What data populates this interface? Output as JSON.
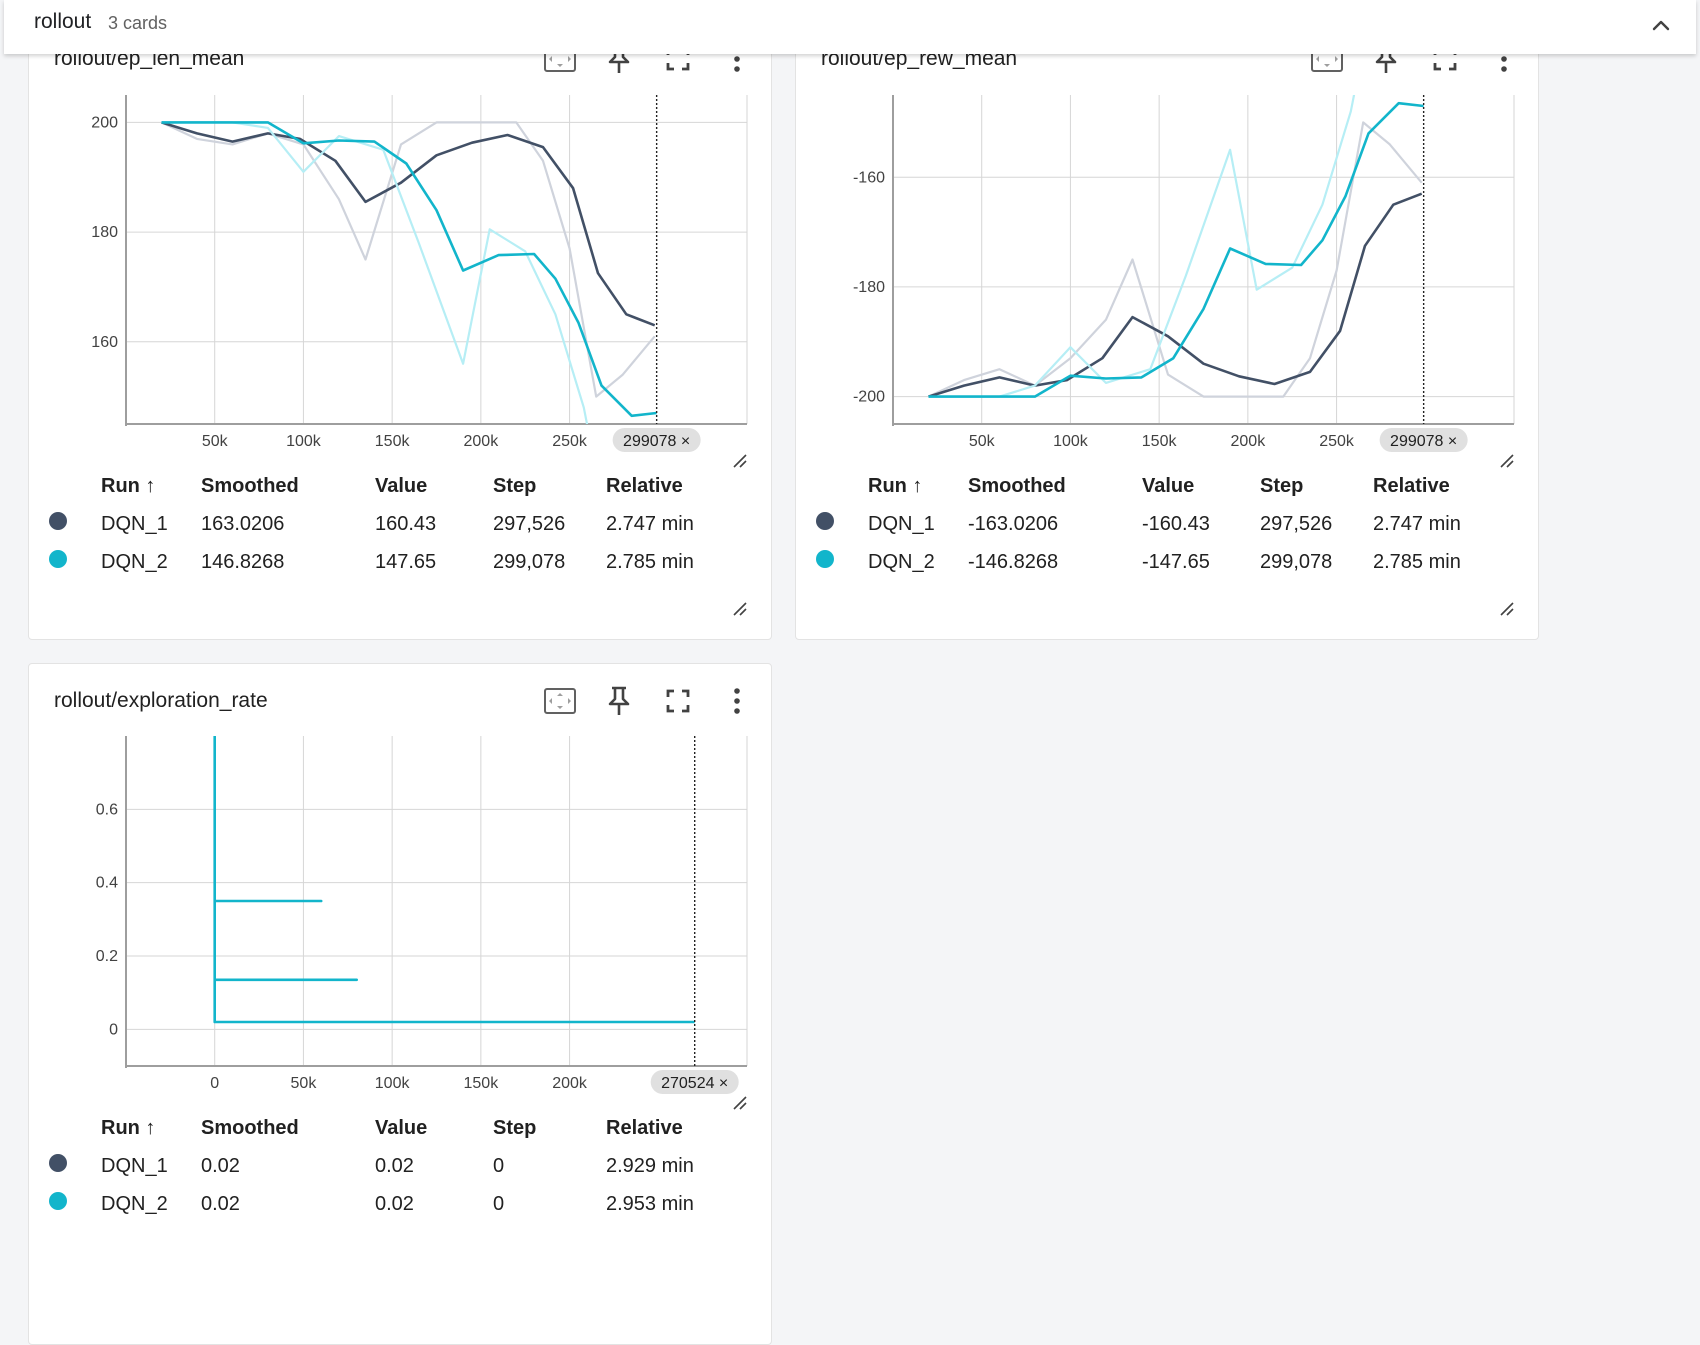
{
  "group": {
    "title": "rollout",
    "count": "3 cards"
  },
  "colors": {
    "dqn1": "#425066",
    "dqn2": "#12b5cb",
    "dqn1_raw": "#cfd3dc",
    "dqn2_raw": "#b6eef5",
    "grid": "#d6d6d6"
  },
  "table_headers": {
    "run": "Run ↑",
    "smoothed": "Smoothed",
    "value": "Value",
    "step": "Step",
    "relative": "Relative"
  },
  "cards": [
    {
      "title": "rollout/ep_len_mean",
      "step_marker": "299078 ×",
      "rows": [
        {
          "run": "DQN_1",
          "smoothed": "163.0206",
          "value": "160.43",
          "step": "297,526",
          "relative": "2.747 min"
        },
        {
          "run": "DQN_2",
          "smoothed": "146.8268",
          "value": "147.65",
          "step": "299,078",
          "relative": "2.785 min"
        }
      ]
    },
    {
      "title": "rollout/ep_rew_mean",
      "step_marker": "299078 ×",
      "rows": [
        {
          "run": "DQN_1",
          "smoothed": "-163.0206",
          "value": "-160.43",
          "step": "297,526",
          "relative": "2.747 min"
        },
        {
          "run": "DQN_2",
          "smoothed": "-146.8268",
          "value": "-147.65",
          "step": "299,078",
          "relative": "2.785 min"
        }
      ]
    },
    {
      "title": "rollout/exploration_rate",
      "step_marker": "270524 ×",
      "rows": [
        {
          "run": "DQN_1",
          "smoothed": "0.02",
          "value": "0.02",
          "step": "0",
          "relative": "2.929 min"
        },
        {
          "run": "DQN_2",
          "smoothed": "0.02",
          "value": "0.02",
          "step": "0",
          "relative": "2.953 min"
        }
      ]
    }
  ],
  "chart_data": [
    {
      "type": "line",
      "title": "rollout/ep_len_mean",
      "xlim": [
        0,
        350000
      ],
      "ylim": [
        145,
        205
      ],
      "xticks": [
        "50k",
        "100k",
        "150k",
        "200k",
        "250k"
      ],
      "yticks": [
        "160",
        "180",
        "200"
      ],
      "xtick_values": [
        50000,
        100000,
        150000,
        200000,
        250000
      ],
      "ytick_values": [
        160,
        180,
        200
      ],
      "marker_x": 299078,
      "series": [
        {
          "name": "DQN_1",
          "role": "raw",
          "x": [
            20000,
            40000,
            60000,
            80000,
            100000,
            120000,
            135000,
            155000,
            175000,
            200000,
            220000,
            235000,
            250000,
            265000,
            280000,
            298000
          ],
          "y": [
            200,
            197,
            196,
            198,
            196,
            186,
            175,
            196,
            200,
            200,
            200,
            193,
            177,
            150,
            154,
            161
          ]
        },
        {
          "name": "DQN_1",
          "role": "smoothed",
          "x": [
            20000,
            40000,
            60000,
            80000,
            98000,
            118000,
            135000,
            155000,
            175000,
            195000,
            215000,
            235000,
            252000,
            266000,
            282000,
            298000
          ],
          "y": [
            200,
            198,
            196.5,
            198,
            197,
            193,
            185.5,
            189,
            194,
            196.3,
            197.7,
            195.5,
            188,
            172.5,
            165,
            163
          ]
        },
        {
          "name": "DQN_2",
          "role": "raw",
          "x": [
            20000,
            45000,
            60000,
            80000,
            100000,
            120000,
            145000,
            165000,
            190000,
            205000,
            225000,
            242000,
            258000,
            275000
          ],
          "y": [
            200,
            200,
            200,
            199,
            191,
            197.5,
            195,
            178,
            156,
            180.5,
            176.5,
            165,
            148,
            120
          ]
        },
        {
          "name": "DQN_2",
          "role": "smoothed",
          "x": [
            20000,
            50000,
            80000,
            100000,
            120000,
            140000,
            158000,
            175000,
            190000,
            210000,
            230000,
            242000,
            255000,
            268000,
            285000,
            299078
          ],
          "y": [
            200,
            200,
            200,
            196.2,
            196.7,
            196.5,
            192.5,
            184,
            173,
            175.8,
            176,
            171.5,
            163.5,
            152,
            146.5,
            147
          ]
        }
      ]
    },
    {
      "type": "line",
      "title": "rollout/ep_rew_mean",
      "xlim": [
        0,
        350000
      ],
      "ylim": [
        -205,
        -145
      ],
      "xticks": [
        "50k",
        "100k",
        "150k",
        "200k",
        "250k"
      ],
      "yticks": [
        "-200",
        "-180",
        "-160"
      ],
      "xtick_values": [
        50000,
        100000,
        150000,
        200000,
        250000
      ],
      "ytick_values": [
        -200,
        -180,
        -160
      ],
      "marker_x": 299078,
      "series": [
        {
          "name": "DQN_1",
          "role": "raw",
          "x": [
            20000,
            40000,
            60000,
            80000,
            100000,
            120000,
            135000,
            155000,
            175000,
            200000,
            220000,
            235000,
            250000,
            265000,
            280000,
            298000
          ],
          "y": [
            -200,
            -197,
            -195,
            -198,
            -193,
            -186,
            -175,
            -196,
            -200,
            -200,
            -200,
            -193,
            -177,
            -150,
            -154,
            -161
          ]
        },
        {
          "name": "DQN_1",
          "role": "smoothed",
          "x": [
            20000,
            40000,
            60000,
            80000,
            98000,
            118000,
            135000,
            155000,
            175000,
            195000,
            215000,
            235000,
            252000,
            266000,
            282000,
            298000
          ],
          "y": [
            -200,
            -198,
            -196.5,
            -198,
            -197,
            -193,
            -185.5,
            -189,
            -194,
            -196.3,
            -197.7,
            -195.5,
            -188,
            -172.5,
            -165,
            -163
          ]
        },
        {
          "name": "DQN_2",
          "role": "raw",
          "x": [
            20000,
            45000,
            60000,
            80000,
            100000,
            120000,
            145000,
            165000,
            190000,
            205000,
            225000,
            242000,
            258000,
            275000
          ],
          "y": [
            -200,
            -200,
            -200,
            -198,
            -191,
            -197.5,
            -195,
            -178,
            -155,
            -180.5,
            -176.5,
            -165,
            -148,
            -120
          ]
        },
        {
          "name": "DQN_2",
          "role": "smoothed",
          "x": [
            20000,
            50000,
            80000,
            100000,
            120000,
            140000,
            158000,
            175000,
            190000,
            210000,
            230000,
            242000,
            255000,
            268000,
            285000,
            299078
          ],
          "y": [
            -200,
            -200,
            -200,
            -196.2,
            -196.7,
            -196.5,
            -193,
            -184,
            -173,
            -175.8,
            -176,
            -171.5,
            -163.5,
            -152,
            -146.5,
            -147
          ]
        }
      ]
    },
    {
      "type": "line",
      "title": "rollout/exploration_rate",
      "xlim": [
        -50000,
        300000
      ],
      "ylim": [
        -0.1,
        0.8
      ],
      "xticks": [
        "0",
        "50k",
        "100k",
        "150k",
        "200k"
      ],
      "yticks": [
        "0",
        "0.2",
        "0.4",
        "0.6"
      ],
      "xtick_values": [
        0,
        50000,
        100000,
        150000,
        200000
      ],
      "ytick_values": [
        0,
        0.2,
        0.4,
        0.6
      ],
      "marker_x": 270524,
      "series": [
        {
          "name": "DQN_2",
          "role": "smoothed",
          "x": [
            0,
            0,
            0,
            60000,
            0,
            0,
            80000,
            0,
            0,
            270524
          ],
          "y": [
            0.8,
            0.35,
            0.35,
            0.35,
            0.35,
            0.135,
            0.135,
            0.135,
            0.02,
            0.02
          ]
        }
      ]
    }
  ]
}
